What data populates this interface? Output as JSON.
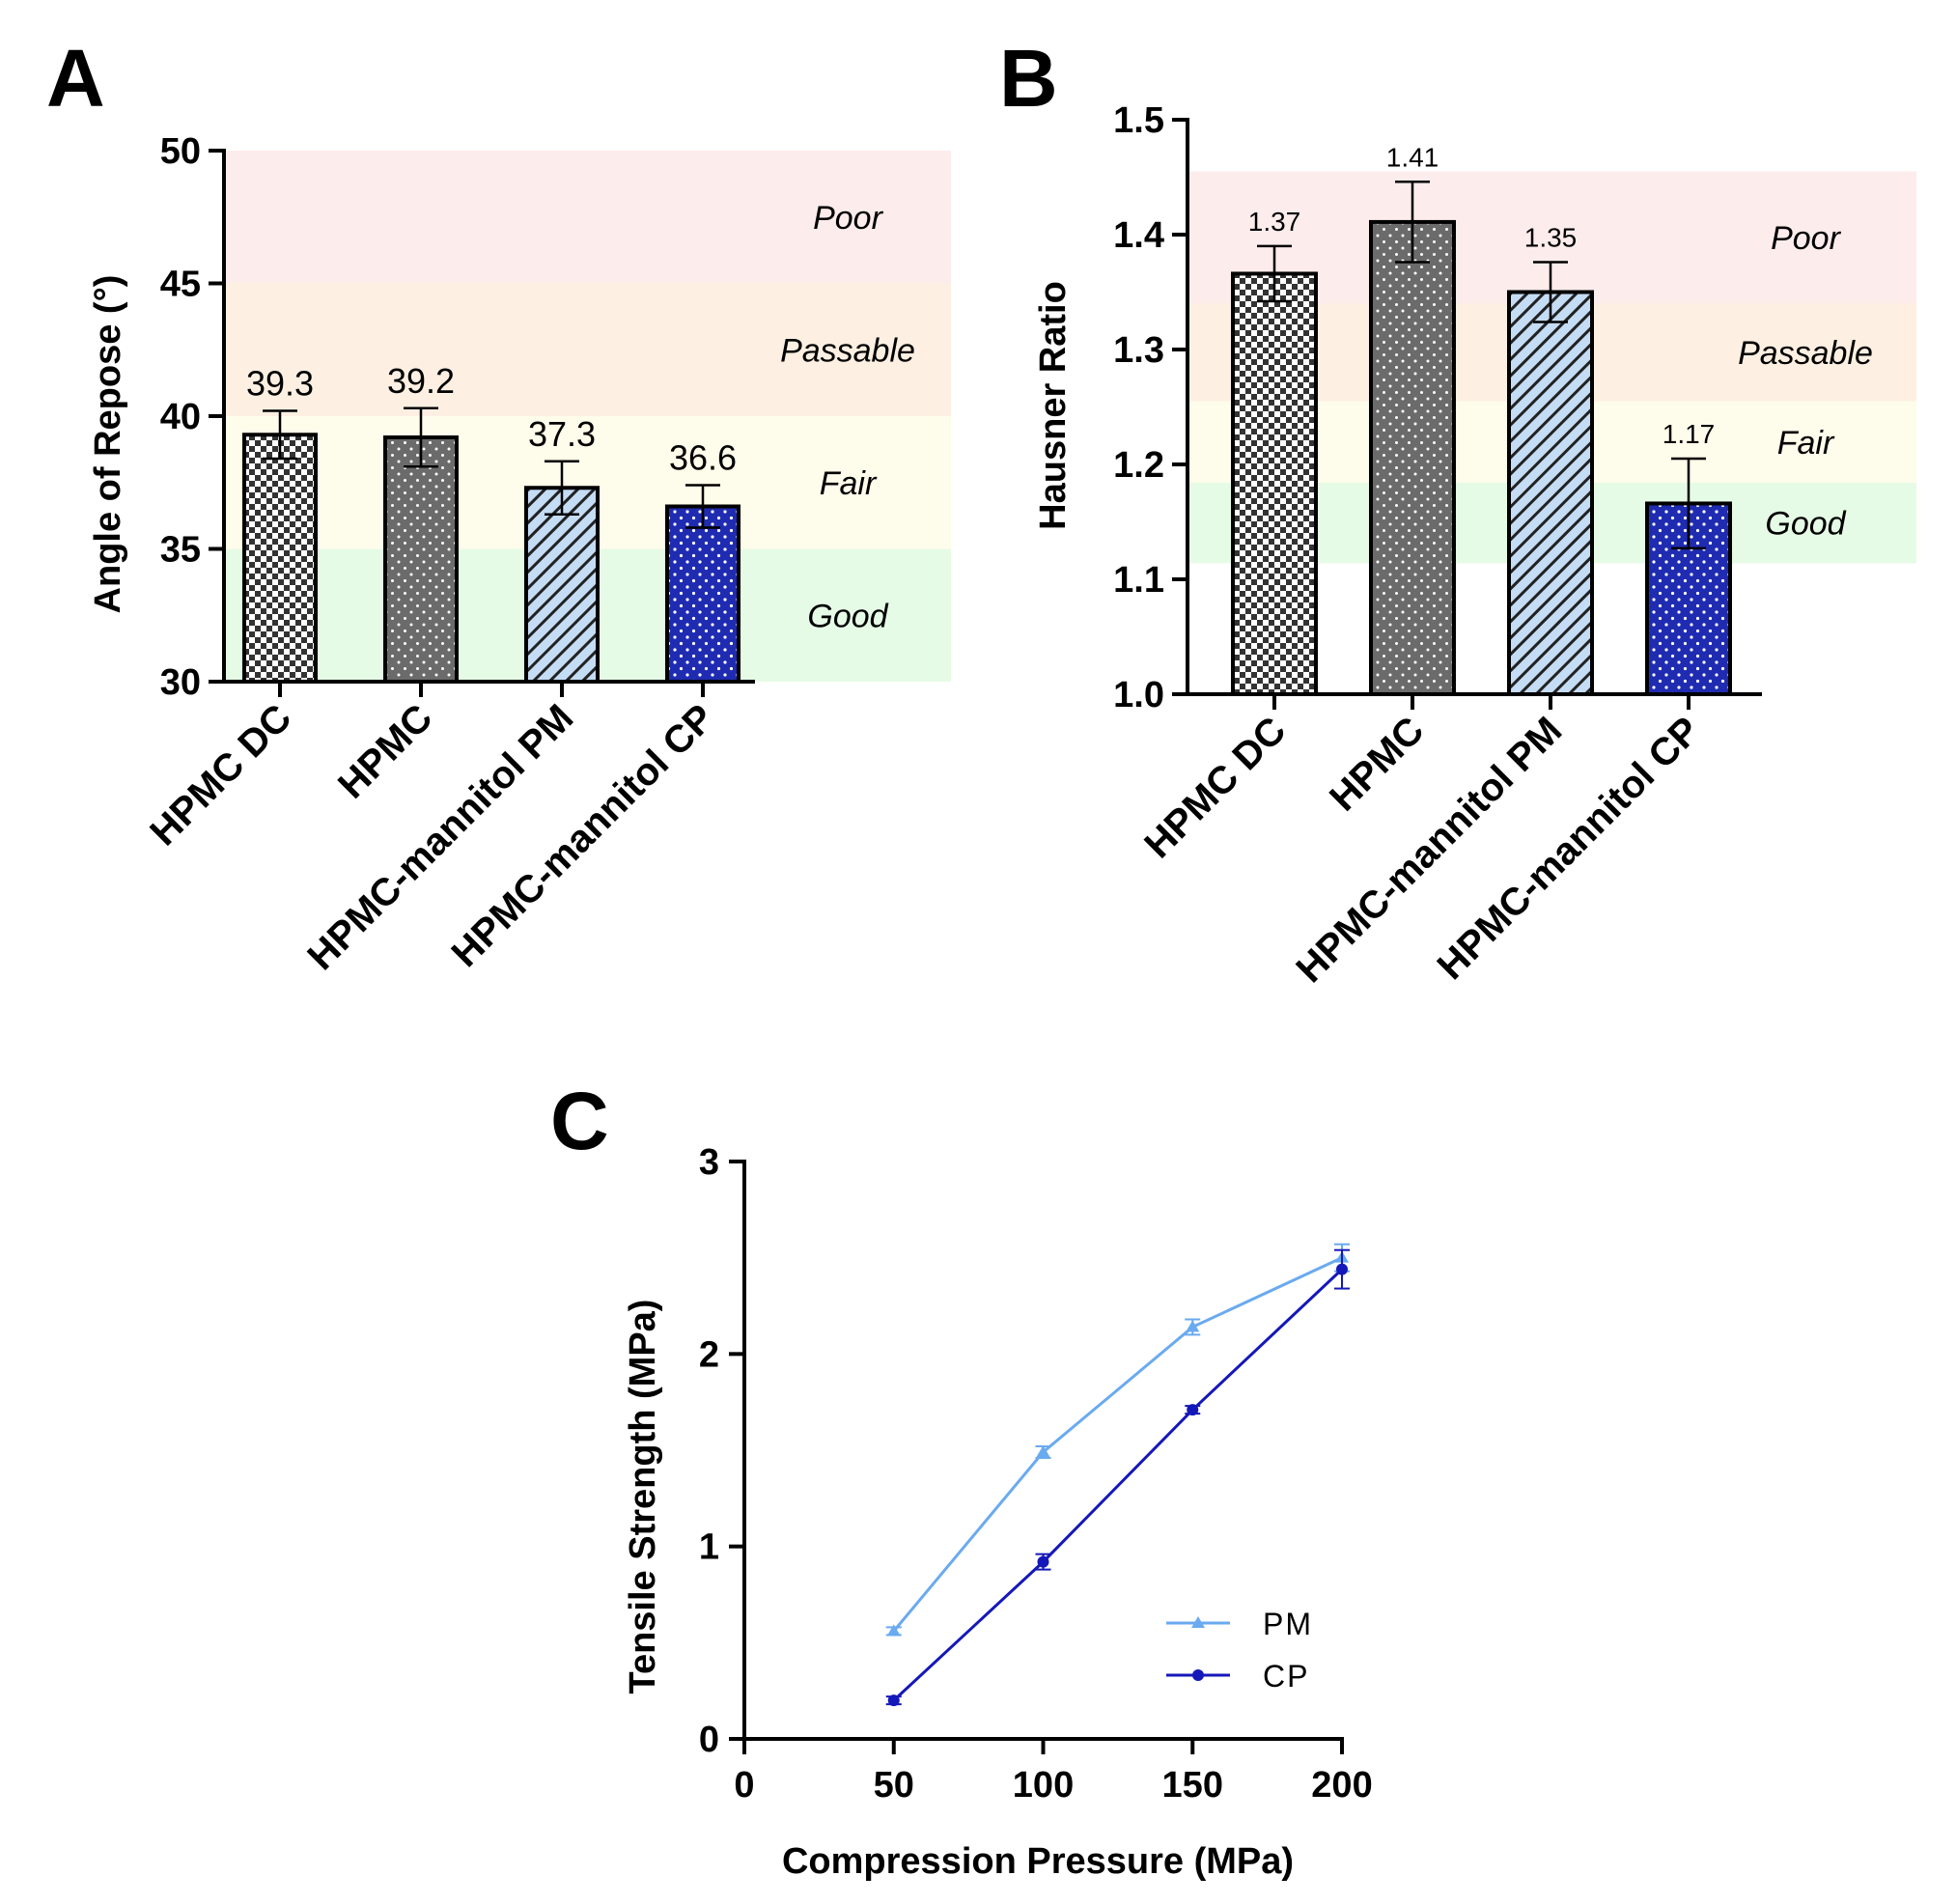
{
  "colors": {
    "poor": "#fdecec",
    "passable": "#fdf0e2",
    "fair": "#fefcea",
    "good": "#e6fbe6",
    "hpmc_dc_check": "#333333",
    "hpmc_gray": "#6b6b6b",
    "pm_light_blue": "#c5dcf5",
    "cp_dark_blue": "#1f2bb0",
    "pm_line": "#6aaaf0",
    "cp_line": "#1518b8"
  },
  "chart_data": [
    {
      "panel": "A",
      "type": "bar",
      "ylabel": "Angle of Repose (°)",
      "ylim": [
        30,
        50
      ],
      "yticks": [
        "30",
        "35",
        "40",
        "45",
        "50"
      ],
      "categories": [
        "HPMC DC",
        "HPMC",
        "HPMC-mannitol PM",
        "HPMC-mannitol CP"
      ],
      "values": [
        39.3,
        39.2,
        37.3,
        36.6
      ],
      "errors": [
        0.9,
        1.1,
        1.0,
        0.8
      ],
      "value_labels": [
        "39.3",
        "39.2",
        "37.3",
        "36.6"
      ],
      "patterns": [
        "checker",
        "dots-gray",
        "hatch",
        "dots-blue"
      ],
      "zones": [
        {
          "label": "Poor",
          "from": 45,
          "to": 50
        },
        {
          "label": "Passable",
          "from": 40,
          "to": 45
        },
        {
          "label": "Fair",
          "from": 35,
          "to": 40
        },
        {
          "label": "Good",
          "from": 30,
          "to": 35
        }
      ]
    },
    {
      "panel": "B",
      "type": "bar",
      "ylabel": "Hausner Ratio",
      "ylim": [
        1.0,
        1.5
      ],
      "yticks": [
        "1.0",
        "1.1",
        "1.2",
        "1.3",
        "1.4",
        "1.5"
      ],
      "categories": [
        "HPMC DC",
        "HPMC",
        "HPMC-mannitol PM",
        "HPMC-mannitol CP"
      ],
      "values": [
        1.366,
        1.411,
        1.35,
        1.166
      ],
      "errors": [
        0.024,
        0.035,
        0.026,
        0.039
      ],
      "value_labels": [
        "1.37",
        "1.41",
        "1.35",
        "1.17"
      ],
      "patterns": [
        "checker",
        "dots-gray",
        "hatch",
        "dots-blue"
      ],
      "zones": [
        {
          "label": "Poor",
          "from": 1.34,
          "to": 1.455
        },
        {
          "label": "Passable",
          "from": 1.255,
          "to": 1.34
        },
        {
          "label": "Fair",
          "from": 1.184,
          "to": 1.255
        },
        {
          "label": "Good",
          "from": 1.114,
          "to": 1.184
        }
      ]
    },
    {
      "panel": "C",
      "type": "line",
      "xlabel": "Compression Pressure (MPa)",
      "ylabel": "Tensile Strength (MPa)",
      "xlim": [
        0,
        200
      ],
      "ylim": [
        0,
        3
      ],
      "xticks": [
        "0",
        "50",
        "100",
        "150",
        "200"
      ],
      "yticks": [
        "0",
        "1",
        "2",
        "3"
      ],
      "legend_position": "lower-right",
      "series": [
        {
          "name": "PM",
          "marker": "triangle",
          "x": [
            50,
            100,
            150,
            200
          ],
          "y": [
            0.56,
            1.49,
            2.14,
            2.5
          ],
          "err": [
            0.02,
            0.03,
            0.04,
            0.07
          ]
        },
        {
          "name": "CP",
          "marker": "circle",
          "x": [
            50,
            100,
            150,
            200
          ],
          "y": [
            0.2,
            0.92,
            1.71,
            2.44
          ],
          "err": [
            0.02,
            0.04,
            0.02,
            0.1
          ]
        }
      ]
    }
  ]
}
